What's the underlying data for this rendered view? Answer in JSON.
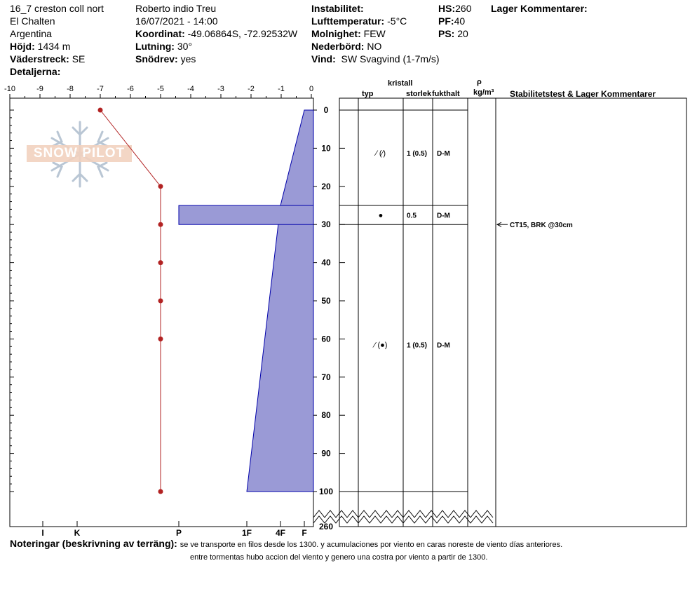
{
  "header": {
    "location_name": "16_7 creston coll nort",
    "region": "El Chalten",
    "country": "Argentina",
    "elevation_label": "Höjd:",
    "elevation_value": "1434 m",
    "aspect_label": "Väderstreck:",
    "aspect_value": "SE",
    "details_label": "Detaljerna:",
    "observer": "Roberto indio Treu",
    "datetime": "16/07/2021 - 14:00",
    "coord_label": "Koordinat:",
    "coord_value": "-49.06864S, -72.92532W",
    "slope_label": "Lutning:",
    "slope_value": "30°",
    "snowdrift_label": "Snödrev:",
    "snowdrift_value": "yes",
    "instability_label": "Instabilitet:",
    "air_temp_label": "Lufttemperatur:",
    "air_temp_value": "-5°C",
    "clouds_label": "Molnighet:",
    "clouds_value": "FEW",
    "precip_label": "Nederbörd:",
    "precip_value": "NO",
    "wind_label": "Vind:",
    "wind_value": "SW Svagvind (1-7m/s)",
    "hs_label": "HS:",
    "hs_value": "260",
    "pf_label": "PF:",
    "pf_value": "40",
    "ps_label": "PS:",
    "ps_value": "20",
    "layer_comments_label": "Lager Kommentarer:"
  },
  "notes": {
    "label": "Noteringar (beskrivning av terräng):",
    "line1": "se ve transporte en filos desde los 1300. y acumulaciones por viento en caras noreste de viento días anteriores.",
    "line2": "entre tormentas hubo accion del viento y genero una costra por viento a partir de 1300."
  },
  "logo_text": "SNOW PILOT",
  "columns": {
    "crystal": "kristall",
    "type": "typ",
    "size": "storlek",
    "moisture": "fukthalt",
    "rho": "ρ",
    "density_unit": "kg/m³",
    "stability": "Stabilitetstest & Lager Kommentarer"
  },
  "colors": {
    "hardness_fill": "#9a9ad6",
    "hardness_stroke": "#0000aa",
    "temp_line": "#b22222"
  },
  "chart_data": {
    "type": "line",
    "temperature_axis": {
      "ticks": [
        -10,
        -9,
        -8,
        -7,
        -6,
        -5,
        -4,
        -3,
        -2,
        -1,
        0
      ],
      "range": [
        -10,
        0
      ]
    },
    "depth_axis": {
      "ticks": [
        0,
        10,
        20,
        30,
        40,
        50,
        60,
        70,
        80,
        90,
        100
      ],
      "bottom_label": "260",
      "range": [
        0,
        100
      ]
    },
    "hardness_axis": {
      "labels": [
        "I",
        "K",
        "P",
        "1F",
        "4F",
        "F"
      ]
    },
    "temperature_profile": [
      {
        "depth": 0,
        "temp": -7
      },
      {
        "depth": 20,
        "temp": -5
      },
      {
        "depth": 30,
        "temp": -5
      },
      {
        "depth": 40,
        "temp": -5
      },
      {
        "depth": 50,
        "temp": -5
      },
      {
        "depth": 60,
        "temp": -5
      },
      {
        "depth": 100,
        "temp": -5
      }
    ],
    "hardness_profile": [
      {
        "top": 0,
        "bottom": 25,
        "hardness": "F to 4F"
      },
      {
        "top": 25,
        "bottom": 30,
        "hardness": "P"
      },
      {
        "top": 30,
        "bottom": 100,
        "hardness": "4F to 1F"
      }
    ],
    "layers": [
      {
        "top": 0,
        "bottom": 25,
        "type": "⁄ (⁄)",
        "size": "1 (0.5)",
        "moisture": "D-M"
      },
      {
        "top": 25,
        "bottom": 30,
        "type": "●",
        "size": "0.5",
        "moisture": "D-M"
      },
      {
        "top": 30,
        "bottom": 100,
        "type": "⁄ (●)",
        "size": "1 (0.5)",
        "moisture": "D-M"
      }
    ],
    "stability_tests": [
      {
        "depth": 30,
        "text": "CT15, BRK @30cm"
      }
    ]
  }
}
